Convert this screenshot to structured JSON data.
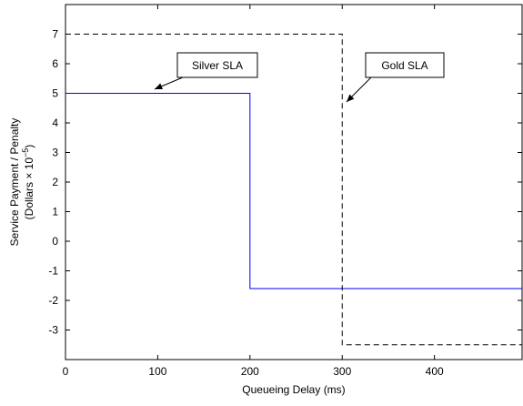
{
  "chart_data": {
    "type": "line",
    "xlabel": "Queueing Delay (ms)",
    "ylabel": "Service Payment / Penalty",
    "ylabel_units": "(Dollars × 10",
    "ylabel_exponent": "−5",
    "ylabel_close": ")",
    "xlim": [
      0,
      495
    ],
    "ylim": [
      -4,
      8
    ],
    "xticks": [
      0,
      100,
      200,
      300,
      400
    ],
    "yticks": [
      -3,
      -2,
      -1,
      0,
      1,
      2,
      3,
      4,
      5,
      6,
      7
    ],
    "series": [
      {
        "name": "Silver SLA",
        "color": "#0000ff",
        "dashed": false,
        "x": [
          0,
          200,
          200,
          495
        ],
        "values": [
          5,
          5,
          -1.6,
          -1.6
        ]
      },
      {
        "name": "Gold SLA",
        "color": "#000000",
        "dashed": true,
        "x": [
          0,
          300,
          300,
          495
        ],
        "values": [
          7,
          7,
          -3.5,
          -3.5
        ]
      }
    ]
  }
}
